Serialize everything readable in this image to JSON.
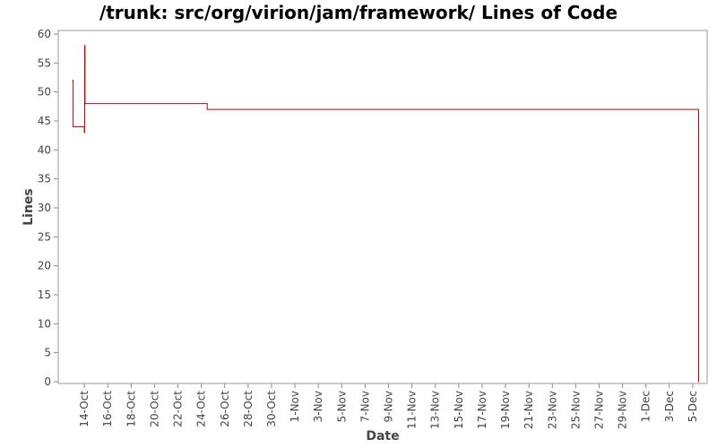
{
  "chart_data": {
    "type": "line",
    "title": "/trunk: src/org/virion/jam/framework/ Lines of Code",
    "xlabel": "Date",
    "ylabel": "Lines",
    "ylim": [
      0,
      60
    ],
    "yticks": [
      0,
      5,
      10,
      15,
      20,
      25,
      30,
      35,
      40,
      45,
      50,
      55,
      60
    ],
    "xlim": [
      "2003-10-12",
      "2003-12-06"
    ],
    "xticks": [
      {
        "date": "2003-10-14",
        "label": "14-Oct"
      },
      {
        "date": "2003-10-16",
        "label": "16-Oct"
      },
      {
        "date": "2003-10-18",
        "label": "18-Oct"
      },
      {
        "date": "2003-10-20",
        "label": "20-Oct"
      },
      {
        "date": "2003-10-22",
        "label": "22-Oct"
      },
      {
        "date": "2003-10-24",
        "label": "24-Oct"
      },
      {
        "date": "2003-10-26",
        "label": "26-Oct"
      },
      {
        "date": "2003-10-28",
        "label": "28-Oct"
      },
      {
        "date": "2003-10-30",
        "label": "30-Oct"
      },
      {
        "date": "2003-11-01",
        "label": "1-Nov"
      },
      {
        "date": "2003-11-03",
        "label": "3-Nov"
      },
      {
        "date": "2003-11-05",
        "label": "5-Nov"
      },
      {
        "date": "2003-11-07",
        "label": "7-Nov"
      },
      {
        "date": "2003-11-09",
        "label": "9-Nov"
      },
      {
        "date": "2003-11-11",
        "label": "11-Nov"
      },
      {
        "date": "2003-11-13",
        "label": "13-Nov"
      },
      {
        "date": "2003-11-15",
        "label": "15-Nov"
      },
      {
        "date": "2003-11-17",
        "label": "17-Nov"
      },
      {
        "date": "2003-11-19",
        "label": "19-Nov"
      },
      {
        "date": "2003-11-21",
        "label": "21-Nov"
      },
      {
        "date": "2003-11-23",
        "label": "23-Nov"
      },
      {
        "date": "2003-11-25",
        "label": "25-Nov"
      },
      {
        "date": "2003-11-27",
        "label": "27-Nov"
      },
      {
        "date": "2003-11-29",
        "label": "29-Nov"
      },
      {
        "date": "2003-12-01",
        "label": "1-Dec"
      },
      {
        "date": "2003-12-03",
        "label": "3-Dec"
      },
      {
        "date": "2003-12-05",
        "label": "5-Dec"
      }
    ],
    "step_line": true,
    "grid": false,
    "legend": "none",
    "series": [
      {
        "color": "#cc0000",
        "points": [
          {
            "x": "2003-10-13 00:00",
            "y": 52
          },
          {
            "x": "2003-10-13 01:00",
            "y": 44
          },
          {
            "x": "2003-10-14 00:00",
            "y": 43
          },
          {
            "x": "2003-10-14 00:45",
            "y": 58
          },
          {
            "x": "2003-10-14 01:30",
            "y": 48
          },
          {
            "x": "2003-10-24 12:00",
            "y": 47
          },
          {
            "x": "2003-12-05 12:00",
            "y": 0
          }
        ]
      }
    ]
  }
}
